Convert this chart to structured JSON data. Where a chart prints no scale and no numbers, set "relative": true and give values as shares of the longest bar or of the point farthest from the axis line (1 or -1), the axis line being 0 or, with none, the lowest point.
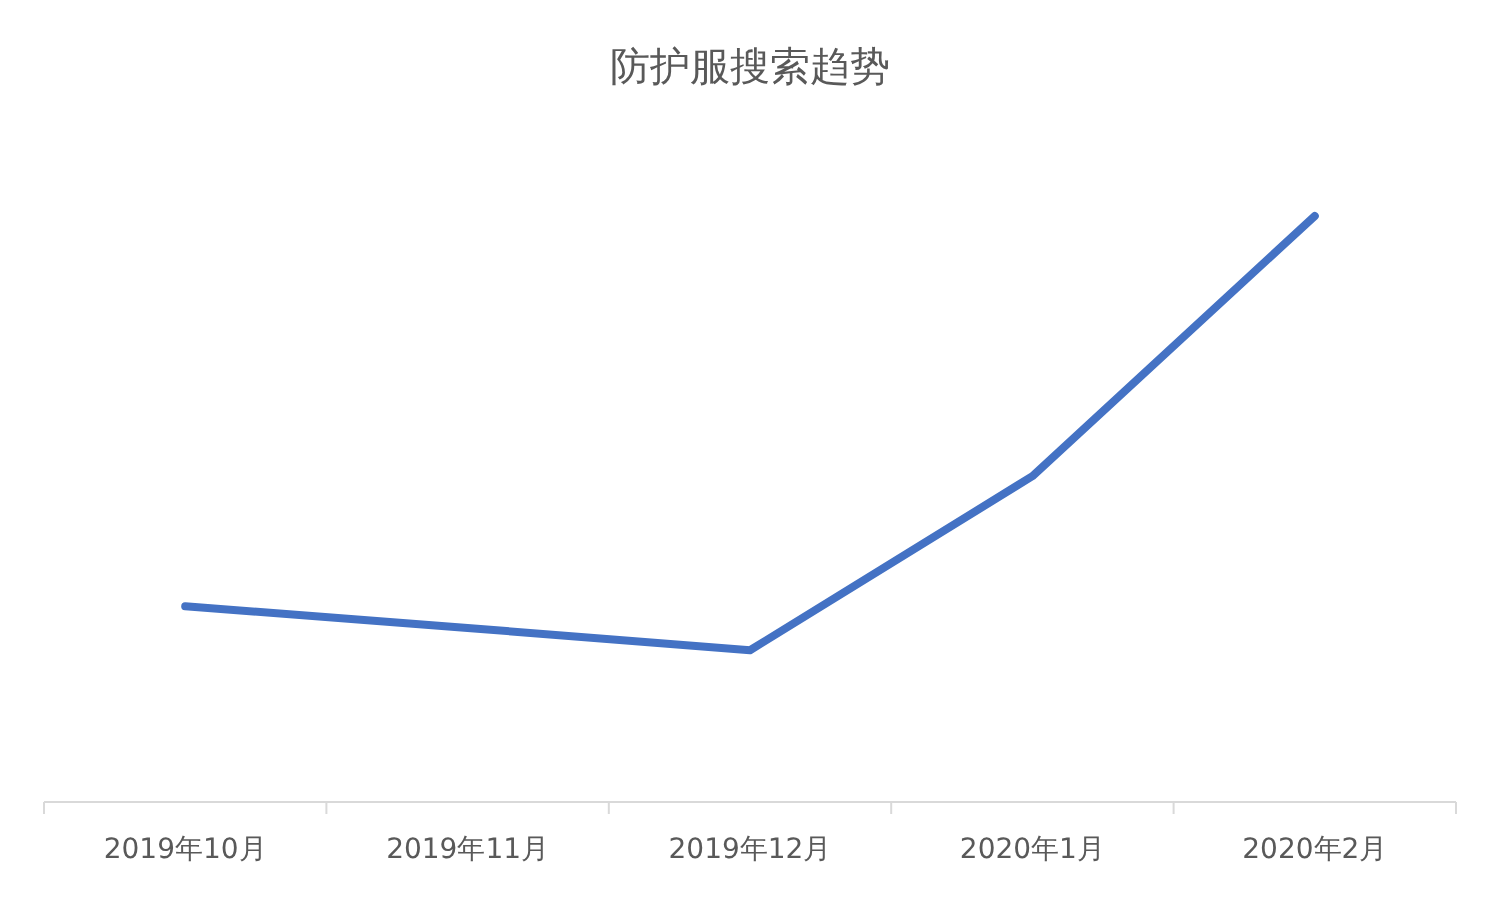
{
  "chart_data": {
    "type": "line",
    "title": "防护服搜索趋势",
    "categories": [
      "2019年10月",
      "2019年11月",
      "2019年12月",
      "2020年1月",
      "2020年2月"
    ],
    "series": [
      {
        "color": "#4472c4",
        "values": [
          0.334,
          0.297,
          0.259,
          0.556,
          1
        ]
      }
    ],
    "relative": true,
    "marker": "none",
    "line_style": "solid"
  }
}
